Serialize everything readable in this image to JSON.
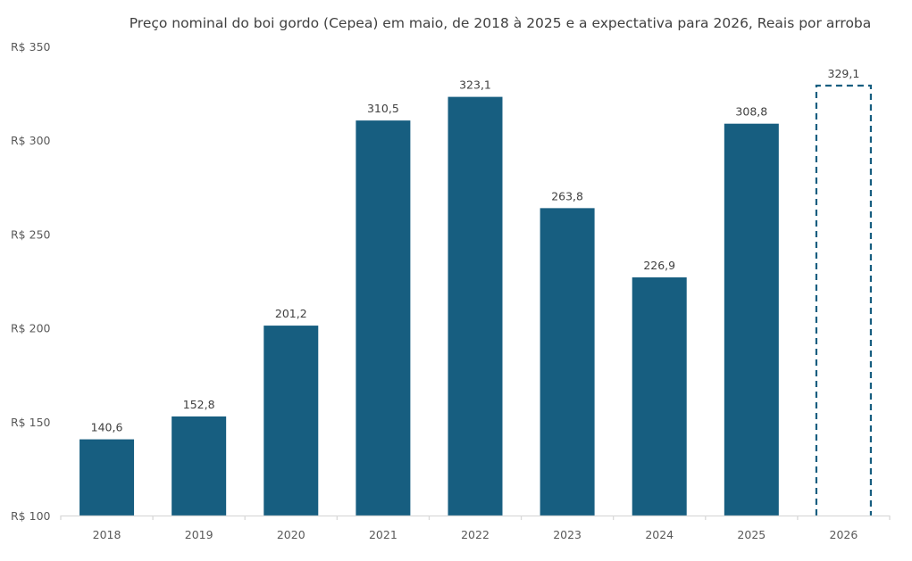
{
  "chart_data": {
    "type": "bar",
    "title": "Preço nominal do boi gordo (Cepea) em maio, de 2018 à 2025 e a expectativa para 2026, Reais por arroba",
    "xlabel": "",
    "ylabel": "",
    "categories": [
      "2018",
      "2019",
      "2020",
      "2021",
      "2022",
      "2023",
      "2024",
      "2025",
      "2026"
    ],
    "values": [
      140.6,
      152.8,
      201.2,
      310.5,
      323.1,
      263.8,
      226.9,
      308.8,
      329.1
    ],
    "data_labels": [
      "140,6",
      "152,8",
      "201,2",
      "310,5",
      "323,1",
      "263,8",
      "226,9",
      "308,8",
      "329,1"
    ],
    "bar_styles": [
      "solid",
      "solid",
      "solid",
      "solid",
      "solid",
      "solid",
      "solid",
      "solid",
      "dashed-outline"
    ],
    "ylim": [
      100,
      350
    ],
    "yticks": [
      100,
      150,
      200,
      250,
      300,
      350
    ],
    "ytick_labels": [
      "R$ 100",
      "R$ 150",
      "R$ 200",
      "R$ 250",
      "R$ 300",
      "R$ 350"
    ],
    "grid": false,
    "legend": "none",
    "colors": {
      "bar": "#175E80",
      "axis": "#D9D9D9"
    }
  }
}
